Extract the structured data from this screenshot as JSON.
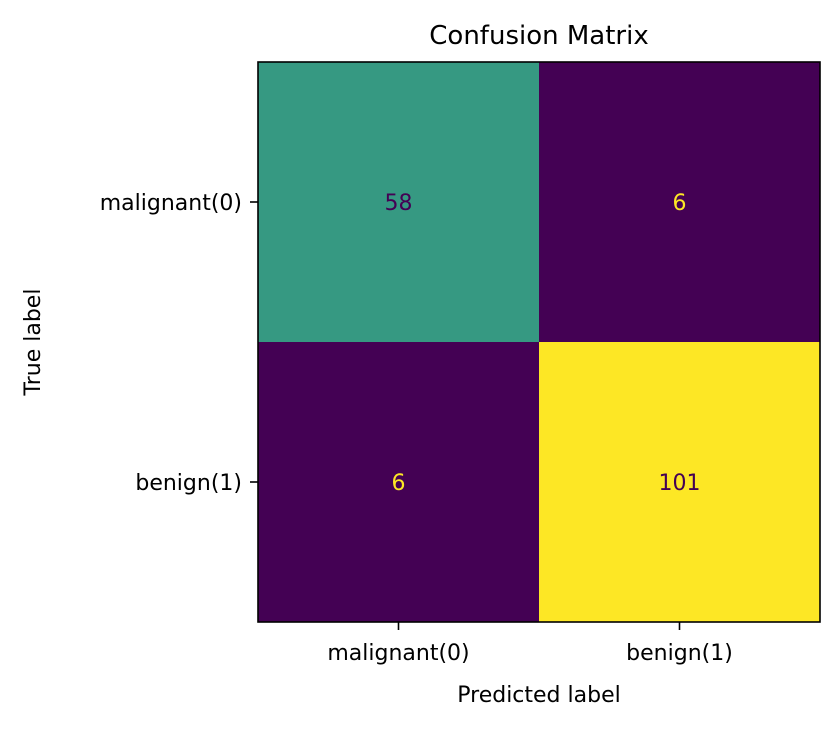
{
  "chart_data": {
    "type": "heatmap",
    "title": "Confusion Matrix",
    "xlabel": "Predicted label",
    "ylabel": "True label",
    "x_categories": [
      "malignant(0)",
      "benign(1)"
    ],
    "y_categories": [
      "malignant(0)",
      "benign(1)"
    ],
    "values": [
      [
        58,
        6
      ],
      [
        6,
        101
      ]
    ],
    "colormap": "viridis",
    "colorbar": false
  },
  "colors": {
    "low": "#440154",
    "mid": "#21918c",
    "high": "#fde725",
    "text_on_light": "#440154",
    "text_on_dark": "#fde725",
    "frame": "#000000"
  }
}
